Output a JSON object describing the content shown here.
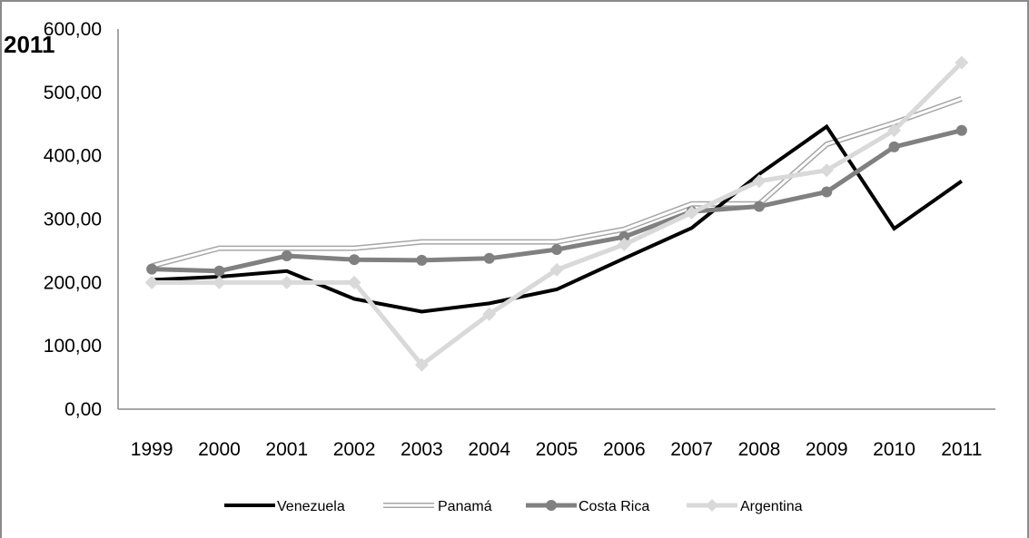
{
  "chart_data": {
    "type": "line",
    "title": "2011",
    "categories": [
      "1999",
      "2000",
      "2001",
      "2002",
      "2003",
      "2004",
      "2005",
      "2006",
      "2007",
      "2008",
      "2009",
      "2010",
      "2011"
    ],
    "ylim": [
      0,
      600
    ],
    "yticks": [
      0,
      100,
      200,
      300,
      400,
      500,
      600
    ],
    "ytick_labels": [
      "0,00",
      "100,00",
      "200,00",
      "300,00",
      "400,00",
      "500,00",
      "600,00"
    ],
    "grid": false,
    "legend_position": "bottom",
    "series": [
      {
        "name": "Venezuela",
        "color": "#000000",
        "style": "solid",
        "marker": "none",
        "values": [
          204,
          209,
          218,
          174,
          154,
          167,
          189,
          238,
          286,
          371,
          446,
          285,
          360
        ]
      },
      {
        "name": "Panamá",
        "color": "#a6a6a6",
        "style": "double",
        "marker": "none",
        "values": [
          226,
          254,
          254,
          254,
          264,
          264,
          264,
          284,
          324,
          324,
          418,
          452,
          490
        ]
      },
      {
        "name": "Costa Rica",
        "color": "#808080",
        "style": "solid",
        "marker": "circle",
        "values": [
          221,
          218,
          242,
          236,
          235,
          238,
          252,
          272,
          312,
          320,
          343,
          414,
          440
        ]
      },
      {
        "name": "Argentina",
        "color": "#d9d9d9",
        "style": "solid",
        "marker": "diamond",
        "values": [
          200,
          200,
          200,
          200,
          70,
          150,
          220,
          260,
          310,
          360,
          377,
          440,
          547
        ]
      }
    ]
  }
}
